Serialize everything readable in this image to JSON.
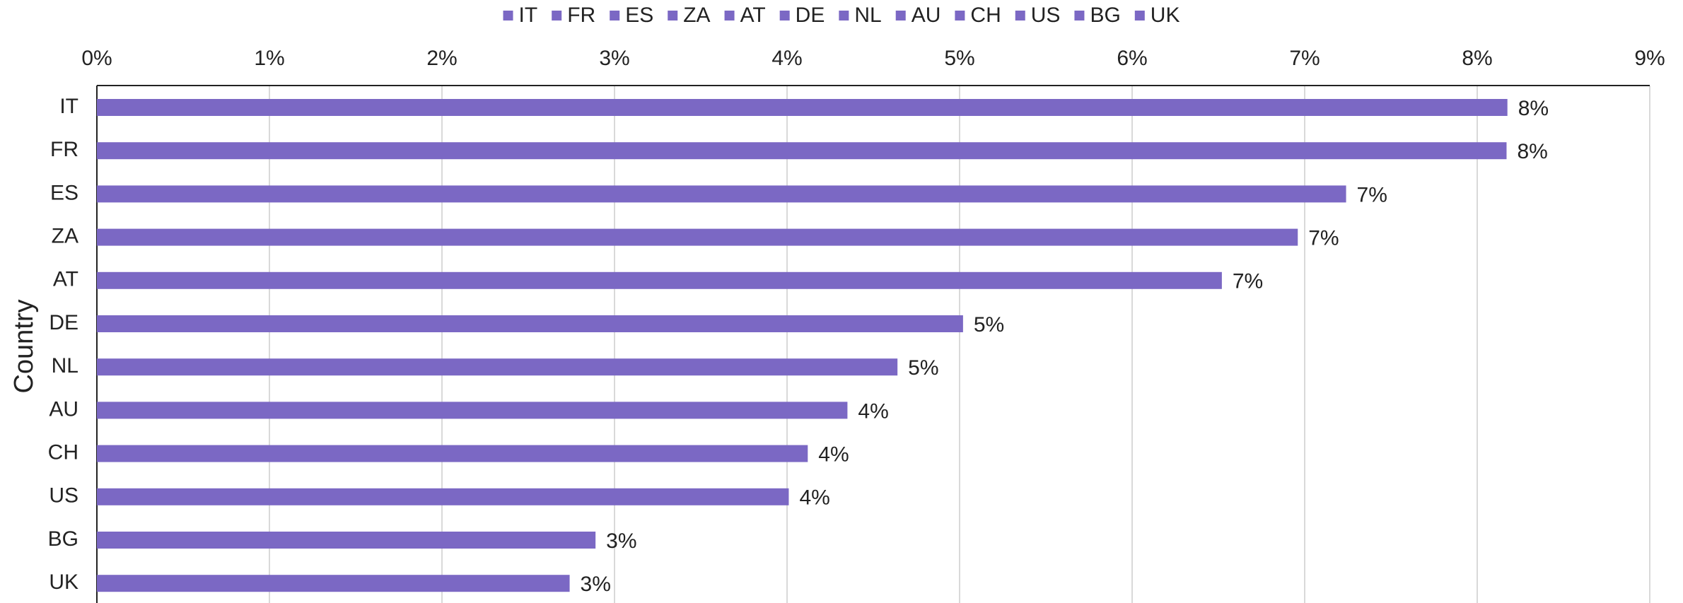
{
  "chart_data": {
    "type": "hbar",
    "y_label": "Country",
    "categories": [
      "IT",
      "FR",
      "ES",
      "ZA",
      "AT",
      "DE",
      "NL",
      "AU",
      "CH",
      "US",
      "BG",
      "UK"
    ],
    "values": [
      8.175,
      8.17,
      7.24,
      6.96,
      6.52,
      5.02,
      4.64,
      4.35,
      4.12,
      4.01,
      2.89,
      2.74
    ],
    "value_labels": [
      "8%",
      "8%",
      "7%",
      "7%",
      "7%",
      "5%",
      "5%",
      "4%",
      "4%",
      "4%",
      "3%",
      "3%"
    ],
    "color": "#7b68c4",
    "xlim": [
      0,
      9
    ],
    "xticks": [
      {
        "value": 0,
        "label": "0%"
      },
      {
        "value": 1,
        "label": "1%"
      },
      {
        "value": 2,
        "label": "2%"
      },
      {
        "value": 3,
        "label": "3%"
      },
      {
        "value": 4,
        "label": "4%"
      },
      {
        "value": 5,
        "label": "5%"
      },
      {
        "value": 6,
        "label": "6%"
      },
      {
        "value": 7,
        "label": "7%"
      },
      {
        "value": 8,
        "label": "8%"
      },
      {
        "value": 9,
        "label": "9%"
      }
    ],
    "grid": true,
    "legend": "top"
  }
}
